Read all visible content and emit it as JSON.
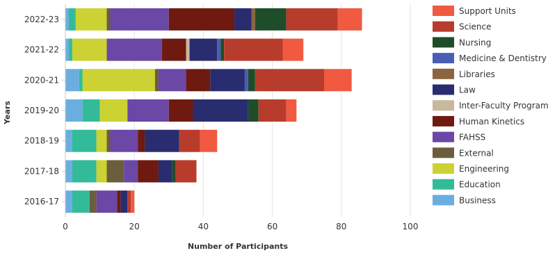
{
  "chart_data": {
    "type": "bar",
    "orientation": "horizontal",
    "stacked": true,
    "title": "",
    "xlabel": "Number of Participants",
    "ylabel": "Years",
    "xlim": [
      0,
      100
    ],
    "x_ticks": [
      0,
      20,
      40,
      60,
      80,
      100
    ],
    "grid": true,
    "legend_position": "right",
    "categories": [
      "2022-23",
      "2021-22",
      "2020-21",
      "2019-20",
      "2018-19",
      "2017-18",
      "2016-17"
    ],
    "series": [
      {
        "name": "Business",
        "color": "#6aaee0",
        "values": [
          1,
          1,
          4,
          5,
          2,
          2,
          2
        ]
      },
      {
        "name": "Education",
        "color": "#33bb99",
        "values": [
          2,
          1,
          1,
          5,
          7,
          7,
          5
        ]
      },
      {
        "name": "Engineering",
        "color": "#ccd233",
        "values": [
          9,
          10,
          21,
          8,
          3,
          3,
          0
        ]
      },
      {
        "name": "External",
        "color": "#6b5e3d",
        "values": [
          1,
          0,
          1,
          0,
          1,
          5,
          2
        ]
      },
      {
        "name": "FAHSS",
        "color": "#6b47a6",
        "values": [
          17,
          16,
          8,
          12,
          8,
          4,
          6
        ]
      },
      {
        "name": "Human Kinetics",
        "color": "#6e1a10",
        "values": [
          19,
          7,
          7,
          7,
          2,
          6,
          1
        ]
      },
      {
        "name": "Inter-Faculty Programs",
        "color": "#c8b89e",
        "values": [
          0,
          1,
          0,
          0,
          0,
          0,
          0
        ]
      },
      {
        "name": "Law",
        "color": "#2a2c70",
        "values": [
          5,
          8,
          10,
          16,
          10,
          4,
          2
        ]
      },
      {
        "name": "Libraries",
        "color": "#8b6440",
        "values": [
          1,
          0,
          0,
          0,
          0,
          0,
          0
        ]
      },
      {
        "name": "Medicine & Dentistry",
        "color": "#4a5eb3",
        "values": [
          0,
          1,
          1,
          0,
          0,
          0,
          0
        ]
      },
      {
        "name": "Nursing",
        "color": "#1f4d2a",
        "values": [
          9,
          1,
          2,
          3,
          0,
          1,
          0
        ]
      },
      {
        "name": "Science",
        "color": "#b83c2c",
        "values": [
          15,
          17,
          20,
          8,
          6,
          6,
          1
        ]
      },
      {
        "name": "Support Units",
        "color": "#f05a40",
        "values": [
          7,
          6,
          8,
          3,
          5,
          0,
          1
        ]
      }
    ]
  }
}
